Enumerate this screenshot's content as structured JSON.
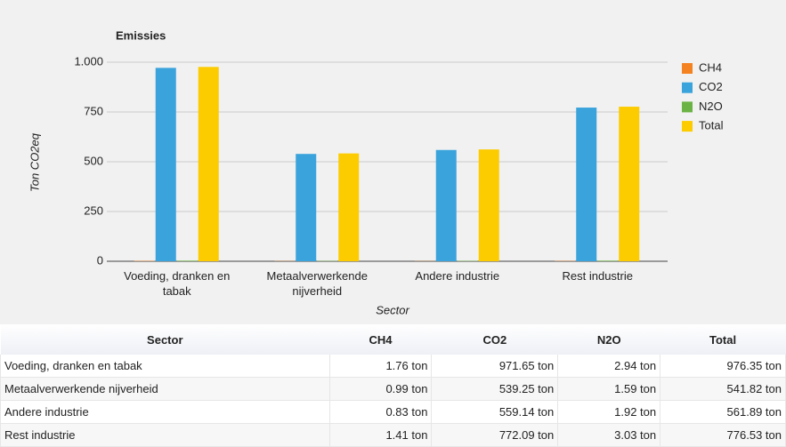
{
  "chart_data": {
    "type": "bar",
    "title": "Emissies",
    "x_label": "Sector",
    "y_label": "Ton CO2eq",
    "categories": [
      "Voeding, dranken en tabak",
      "Metaalverwerkende nijverheid",
      "Andere industrie",
      "Rest industrie"
    ],
    "series": [
      {
        "name": "CH4",
        "color": "#f58220",
        "values": [
          1.76,
          0.99,
          0.83,
          1.41
        ]
      },
      {
        "name": "CO2",
        "color": "#3aa3dc",
        "values": [
          971.65,
          539.25,
          559.14,
          772.09
        ]
      },
      {
        "name": "N2O",
        "color": "#6ab344",
        "values": [
          2.94,
          1.59,
          1.92,
          3.03
        ]
      },
      {
        "name": "Total",
        "color": "#fccc00",
        "values": [
          976.35,
          541.82,
          561.89,
          776.53
        ]
      }
    ],
    "ylim": [
      0,
      1000
    ],
    "yticks": [
      0,
      250,
      500,
      750,
      {
        "value": 1000,
        "label": "1.000"
      }
    ],
    "grid": true,
    "legend": "right"
  },
  "table": {
    "header": [
      "Sector",
      "CH4",
      "CO2",
      "N2O",
      "Total"
    ],
    "rows": [
      [
        "Voeding, dranken en tabak",
        "1.76 ton",
        "971.65 ton",
        "2.94 ton",
        "976.35 ton"
      ],
      [
        "Metaalverwerkende nijverheid",
        "0.99 ton",
        "539.25 ton",
        "1.59 ton",
        "541.82 ton"
      ],
      [
        "Andere industrie",
        "0.83 ton",
        "559.14 ton",
        "1.92 ton",
        "561.89 ton"
      ],
      [
        "Rest industrie",
        "1.41 ton",
        "772.09 ton",
        "3.03 ton",
        "776.53 ton"
      ]
    ]
  }
}
